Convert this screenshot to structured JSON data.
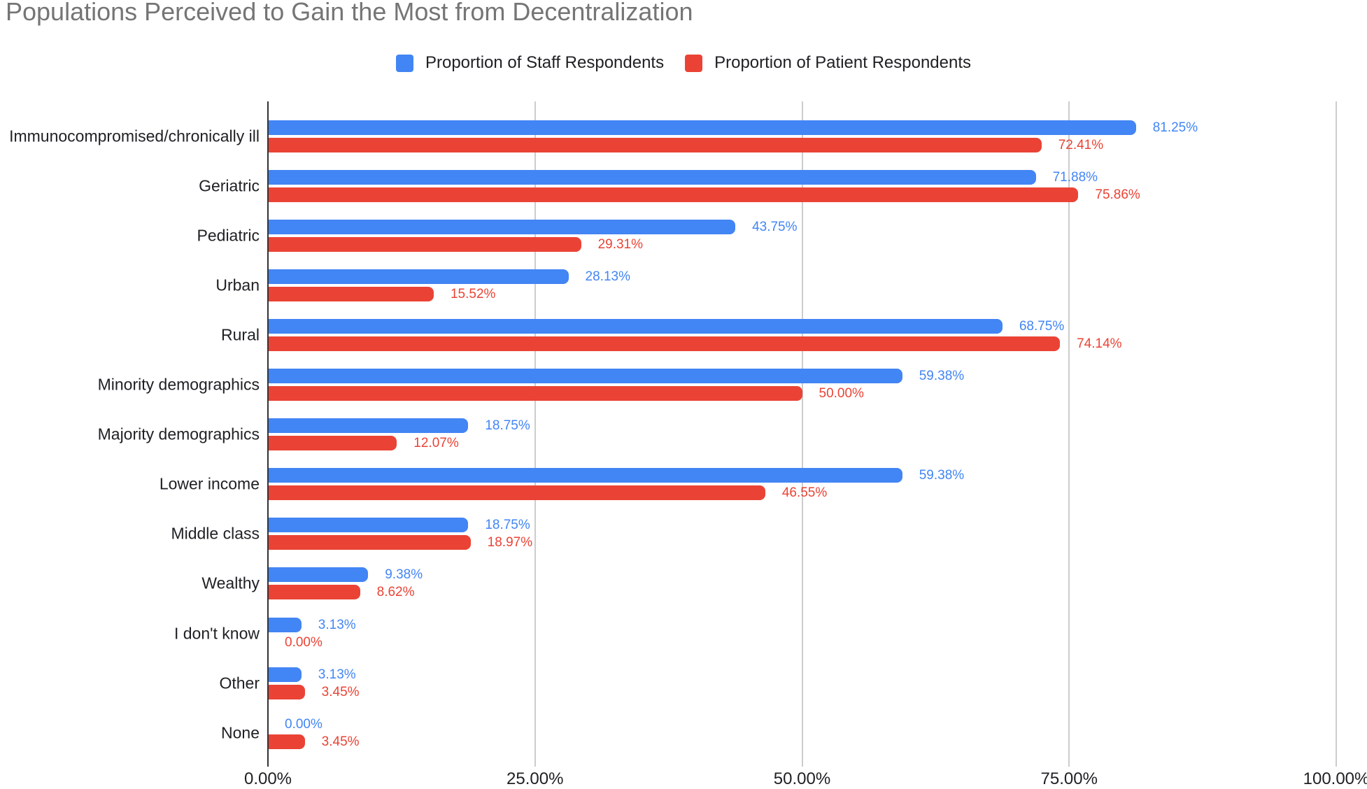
{
  "title": "Populations Perceived to Gain the Most from Decentralization",
  "colors": {
    "staff_blue": "#4285F4",
    "patient_red": "#EA4335",
    "title_gray": "#757575",
    "text_dark": "#202124",
    "gridline_gray": "#cccccc",
    "axis_line_dark": "#333333"
  },
  "chart_data": {
    "type": "bar",
    "orientation": "horizontal",
    "title": "Populations Perceived to Gain the Most from Decentralization",
    "legend_position": "top",
    "grid": true,
    "categories": [
      "Immunocompromised/chronically ill",
      "Geriatric",
      "Pediatric",
      "Urban",
      "Rural",
      "Minority demographics",
      "Majority demographics",
      "Lower income",
      "Middle class",
      "Wealthy",
      "I don't know",
      "Other",
      "None"
    ],
    "series": [
      {
        "name": "Proportion of Staff Respondents",
        "color": "#4285F4",
        "values": [
          81.25,
          71.88,
          43.75,
          28.13,
          68.75,
          59.38,
          18.75,
          59.38,
          18.75,
          9.38,
          3.13,
          3.13,
          0.0
        ]
      },
      {
        "name": "Proportion of Patient Respondents",
        "color": "#EA4335",
        "values": [
          72.41,
          75.86,
          29.31,
          15.52,
          74.14,
          50.0,
          12.07,
          46.55,
          18.97,
          8.62,
          0.0,
          3.45,
          3.45
        ]
      }
    ],
    "value_label_format": "0.00%",
    "x_axis": {
      "min": 0,
      "max": 100,
      "ticks": [
        {
          "label": "0.00%",
          "value": 0
        },
        {
          "label": "25.00%",
          "value": 25
        },
        {
          "label": "50.00%",
          "value": 50
        },
        {
          "label": "75.00%",
          "value": 75
        },
        {
          "label": "100.00%",
          "value": 100
        }
      ]
    }
  }
}
